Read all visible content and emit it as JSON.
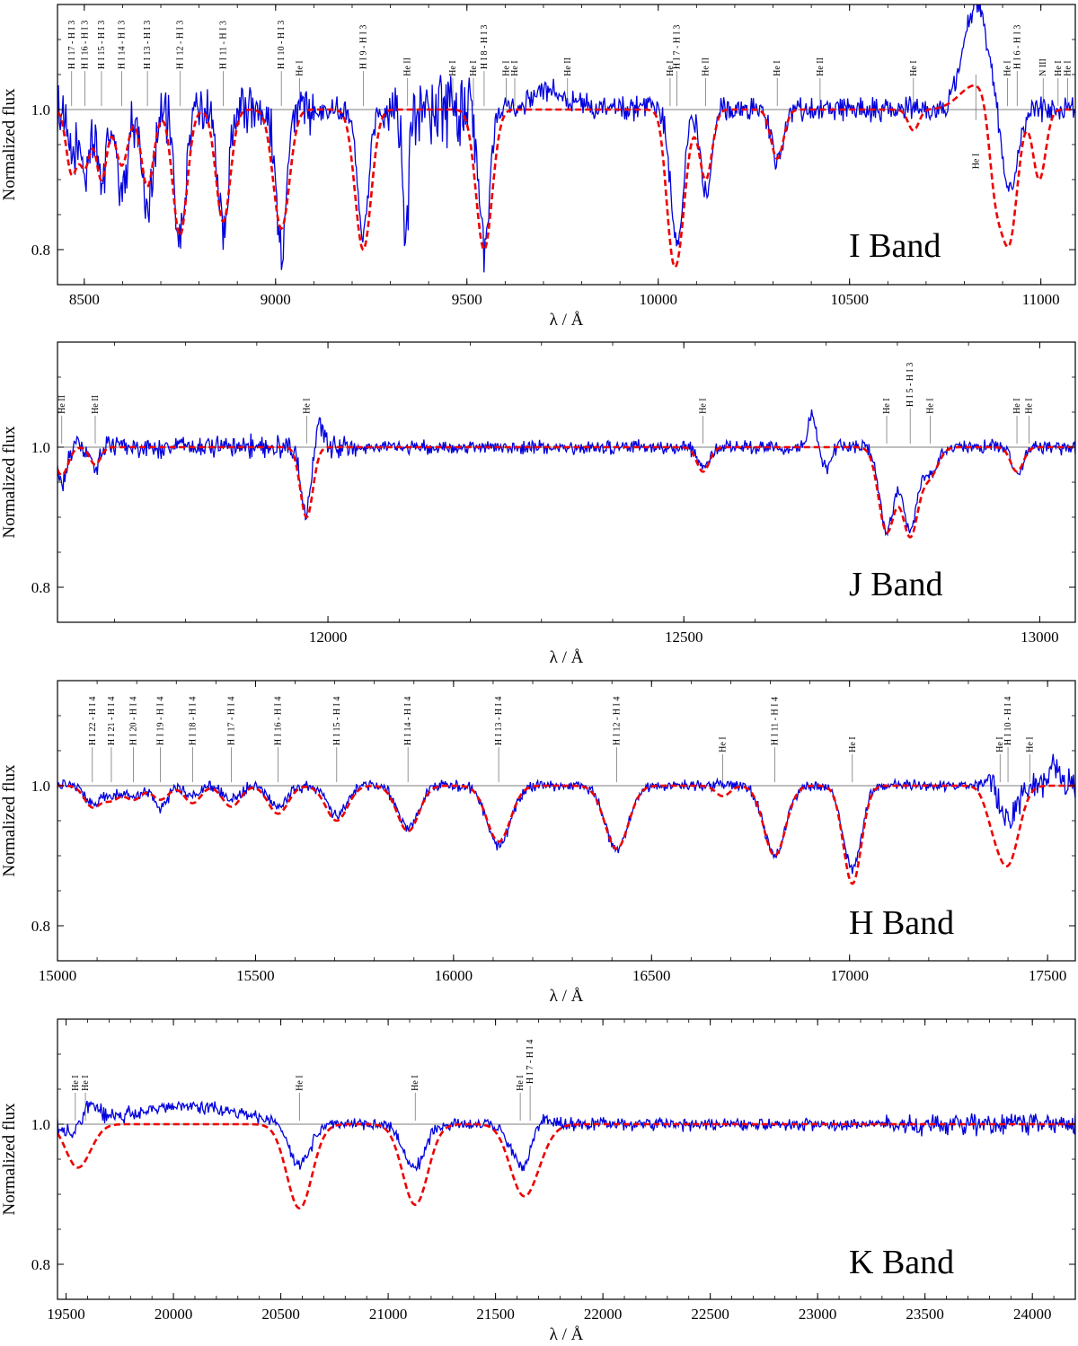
{
  "figure": {
    "colors": {
      "observed": "#0000dd",
      "model": "#ee0000",
      "frame": "#000000",
      "marker": "#666666"
    }
  },
  "chart_data": [
    {
      "type": "line",
      "title": "I Band",
      "xlabel": "λ / Å",
      "ylabel": "Normalized flux",
      "xlim": [
        8430,
        11090
      ],
      "ylim": [
        0.75,
        1.15
      ],
      "xticks": [
        8500,
        9000,
        9500,
        10000,
        10500,
        11000
      ],
      "yticks": [
        0.8,
        1.0
      ],
      "ytick_labels": [
        "0.8",
        "1.0"
      ],
      "noise": 0.022,
      "series": [
        {
          "name": "observed",
          "style": "solid"
        },
        {
          "name": "model",
          "style": "dashed"
        }
      ],
      "features": [
        {
          "x": 8467,
          "depth": -0.07,
          "width": 5
        },
        {
          "x": 8502,
          "depth": -0.09,
          "width": 5
        },
        {
          "x": 8545,
          "depth": -0.1,
          "width": 5
        },
        {
          "x": 8598,
          "depth": -0.12,
          "width": 6
        },
        {
          "x": 8665,
          "depth": -0.14,
          "width": 6
        },
        {
          "x": 8750,
          "depth": -0.19,
          "width": 6
        },
        {
          "x": 8863,
          "depth": -0.17,
          "width": 6
        },
        {
          "x": 9015,
          "depth": -0.2,
          "width": 6
        },
        {
          "x": 9229,
          "depth": -0.18,
          "width": 6
        },
        {
          "x": 9340,
          "depth": -0.18,
          "width": 3
        },
        {
          "x": 9545,
          "depth": -0.2,
          "width": 6
        },
        {
          "x": 10049,
          "depth": -0.19,
          "width": 7
        },
        {
          "x": 10124,
          "depth": -0.12,
          "width": 6
        },
        {
          "x": 10311,
          "depth": -0.08,
          "width": 6
        },
        {
          "x": 10830,
          "depth": 0.15,
          "width": 14
        },
        {
          "x": 10917,
          "depth": -0.12,
          "width": 9
        },
        {
          "x": 9720,
          "depth": 0.03,
          "width": 20
        }
      ],
      "model_features": [
        {
          "x": 8467,
          "depth": -0.09,
          "width": 6
        },
        {
          "x": 8502,
          "depth": -0.08,
          "width": 6
        },
        {
          "x": 8545,
          "depth": -0.1,
          "width": 6
        },
        {
          "x": 8598,
          "depth": -0.08,
          "width": 7
        },
        {
          "x": 8665,
          "depth": -0.11,
          "width": 7
        },
        {
          "x": 8750,
          "depth": -0.18,
          "width": 8
        },
        {
          "x": 8863,
          "depth": -0.16,
          "width": 8
        },
        {
          "x": 9015,
          "depth": -0.17,
          "width": 9
        },
        {
          "x": 9229,
          "depth": -0.2,
          "width": 9
        },
        {
          "x": 9545,
          "depth": -0.2,
          "width": 9
        },
        {
          "x": 10030,
          "depth": -0.05,
          "width": 6
        },
        {
          "x": 10049,
          "depth": -0.2,
          "width": 9
        },
        {
          "x": 10124,
          "depth": -0.1,
          "width": 7
        },
        {
          "x": 10311,
          "depth": -0.07,
          "width": 7
        },
        {
          "x": 10667,
          "depth": -0.03,
          "width": 6
        },
        {
          "x": 10830,
          "depth": 0.035,
          "width": 18
        },
        {
          "x": 10880,
          "depth": -0.11,
          "width": 7
        },
        {
          "x": 10917,
          "depth": -0.19,
          "width": 9
        },
        {
          "x": 10996,
          "depth": -0.1,
          "width": 7
        }
      ],
      "noisy_ranges": [
        {
          "from": 8430,
          "to": 9100,
          "amp": 0.045
        },
        {
          "from": 9280,
          "to": 9560,
          "amp": 0.06
        }
      ],
      "line_ids": [
        {
          "x": 8467,
          "label": "H I 17 - H I 3",
          "stack": 0
        },
        {
          "x": 8502,
          "label": "H I 16 - H I 3",
          "stack": 1
        },
        {
          "x": 8545,
          "label": "H I 15 - H I 3",
          "stack": 1
        },
        {
          "x": 8598,
          "label": "H I 14 - H I 3",
          "stack": 1
        },
        {
          "x": 8665,
          "label": "H I 13 - H I 3",
          "stack": 1
        },
        {
          "x": 8750,
          "label": "H I 12 - H I 3",
          "stack": 1
        },
        {
          "x": 8863,
          "label": "H I 11 - H I 3",
          "stack": 1
        },
        {
          "x": 9015,
          "label": "H I 10 - H I 3",
          "stack": 1
        },
        {
          "x": 9063,
          "label": "He I",
          "stack": 2
        },
        {
          "x": 9229,
          "label": "H I 9 - H I 3",
          "stack": 1
        },
        {
          "x": 9345,
          "label": "He II",
          "stack": 2
        },
        {
          "x": 9463,
          "label": "He I",
          "stack": 2
        },
        {
          "x": 9517,
          "label": "He I",
          "stack": 2
        },
        {
          "x": 9545,
          "label": "H I 8 - H I 3",
          "stack": 1
        },
        {
          "x": 9603,
          "label": "He I",
          "stack": 2
        },
        {
          "x": 9625,
          "label": "He I",
          "stack": 2
        },
        {
          "x": 9763,
          "label": "He II",
          "stack": 2
        },
        {
          "x": 10031,
          "label": "He I",
          "stack": 2
        },
        {
          "x": 10049,
          "label": "H I 7 - H I 3",
          "stack": 1
        },
        {
          "x": 10124,
          "label": "He II",
          "stack": 2
        },
        {
          "x": 10311,
          "label": "He I",
          "stack": 2
        },
        {
          "x": 10423,
          "label": "He II",
          "stack": 2
        },
        {
          "x": 10667,
          "label": "He I",
          "stack": 2
        },
        {
          "x": 10830,
          "label": "He I",
          "stack": 3
        },
        {
          "x": 10913,
          "label": "He I",
          "stack": 2
        },
        {
          "x": 10938,
          "label": "H I 6 - H I 3",
          "stack": 1
        },
        {
          "x": 11006,
          "label": "N III",
          "stack": 2
        },
        {
          "x": 11045,
          "label": "He I",
          "stack": 2
        },
        {
          "x": 11070,
          "label": "He I",
          "stack": 2
        }
      ]
    },
    {
      "type": "line",
      "title": "J Band",
      "xlabel": "λ / Å",
      "ylabel": "Normalized flux",
      "xlim": [
        11620,
        13050
      ],
      "ylim": [
        0.75,
        1.15
      ],
      "xticks": [
        12000,
        12500,
        13000
      ],
      "yticks": [
        0.8,
        1.0
      ],
      "ytick_labels": [
        "0.8",
        "1.0"
      ],
      "noise": 0.012,
      "series": [
        {
          "name": "observed",
          "style": "solid"
        },
        {
          "name": "model",
          "style": "dashed"
        }
      ],
      "features": [
        {
          "x": 11626,
          "depth": -0.05,
          "width": 6
        },
        {
          "x": 11673,
          "depth": -0.03,
          "width": 5
        },
        {
          "x": 11970,
          "depth": -0.1,
          "width": 6
        },
        {
          "x": 11985,
          "depth": 0.04,
          "width": 6
        },
        {
          "x": 12527,
          "depth": -0.03,
          "width": 6
        },
        {
          "x": 12680,
          "depth": 0.05,
          "width": 4
        },
        {
          "x": 12700,
          "depth": -0.03,
          "width": 5
        },
        {
          "x": 12785,
          "depth": -0.12,
          "width": 8
        },
        {
          "x": 12818,
          "depth": -0.12,
          "width": 8
        },
        {
          "x": 12846,
          "depth": -0.04,
          "width": 7
        },
        {
          "x": 12968,
          "depth": -0.04,
          "width": 6
        }
      ],
      "model_features": [
        {
          "x": 11626,
          "depth": -0.04,
          "width": 7
        },
        {
          "x": 11673,
          "depth": -0.025,
          "width": 6
        },
        {
          "x": 11970,
          "depth": -0.1,
          "width": 7
        },
        {
          "x": 12527,
          "depth": -0.035,
          "width": 7
        },
        {
          "x": 12785,
          "depth": -0.12,
          "width": 9
        },
        {
          "x": 12818,
          "depth": -0.125,
          "width": 9
        },
        {
          "x": 12846,
          "depth": -0.04,
          "width": 9
        },
        {
          "x": 12968,
          "depth": -0.035,
          "width": 7
        }
      ],
      "noisy_ranges": [
        {
          "from": 11620,
          "to": 12040,
          "amp": 0.02
        }
      ],
      "line_ids": [
        {
          "x": 11626,
          "label": "He II",
          "stack": 2
        },
        {
          "x": 11673,
          "label": "He II",
          "stack": 2
        },
        {
          "x": 11970,
          "label": "He I",
          "stack": 2
        },
        {
          "x": 12527,
          "label": "He I",
          "stack": 2
        },
        {
          "x": 12785,
          "label": "He I",
          "stack": 2
        },
        {
          "x": 12818,
          "label": "H I 5 - H I 3",
          "stack": 0
        },
        {
          "x": 12846,
          "label": "He I",
          "stack": 2
        },
        {
          "x": 12968,
          "label": "He I",
          "stack": 2
        },
        {
          "x": 12985,
          "label": "He I",
          "stack": 2
        }
      ]
    },
    {
      "type": "line",
      "title": "H Band",
      "xlabel": "λ / Å",
      "ylabel": "Normalized flux",
      "xlim": [
        15000,
        17570
      ],
      "ylim": [
        0.75,
        1.15
      ],
      "xticks": [
        15000,
        15500,
        16000,
        16500,
        17000,
        17500
      ],
      "yticks": [
        0.8,
        1.0
      ],
      "ytick_labels": [
        "0.8",
        "1.0"
      ],
      "noise": 0.01,
      "series": [
        {
          "name": "observed",
          "style": "solid"
        },
        {
          "name": "model",
          "style": "dashed"
        }
      ],
      "features": [
        {
          "x": 15088,
          "depth": -0.025,
          "width": 8
        },
        {
          "x": 15136,
          "depth": -0.015,
          "width": 8
        },
        {
          "x": 15192,
          "depth": -0.015,
          "width": 8
        },
        {
          "x": 15260,
          "depth": -0.03,
          "width": 8
        },
        {
          "x": 15341,
          "depth": -0.015,
          "width": 8
        },
        {
          "x": 15439,
          "depth": -0.02,
          "width": 9
        },
        {
          "x": 15557,
          "depth": -0.03,
          "width": 10
        },
        {
          "x": 15705,
          "depth": -0.04,
          "width": 11
        },
        {
          "x": 15885,
          "depth": -0.06,
          "width": 12
        },
        {
          "x": 16114,
          "depth": -0.085,
          "width": 13
        },
        {
          "x": 16412,
          "depth": -0.09,
          "width": 13
        },
        {
          "x": 16811,
          "depth": -0.1,
          "width": 12
        },
        {
          "x": 17007,
          "depth": -0.12,
          "width": 10
        },
        {
          "x": 17360,
          "depth": 0.02,
          "width": 5
        },
        {
          "x": 17400,
          "depth": -0.05,
          "width": 10
        },
        {
          "x": 17520,
          "depth": 0.03,
          "width": 5
        }
      ],
      "model_features": [
        {
          "x": 15088,
          "depth": -0.03,
          "width": 9
        },
        {
          "x": 15136,
          "depth": -0.02,
          "width": 9
        },
        {
          "x": 15192,
          "depth": -0.02,
          "width": 9
        },
        {
          "x": 15260,
          "depth": -0.02,
          "width": 9
        },
        {
          "x": 15341,
          "depth": -0.025,
          "width": 9
        },
        {
          "x": 15439,
          "depth": -0.03,
          "width": 10
        },
        {
          "x": 15557,
          "depth": -0.04,
          "width": 11
        },
        {
          "x": 15705,
          "depth": -0.05,
          "width": 12
        },
        {
          "x": 15885,
          "depth": -0.065,
          "width": 12
        },
        {
          "x": 16114,
          "depth": -0.08,
          "width": 13
        },
        {
          "x": 16412,
          "depth": -0.09,
          "width": 13
        },
        {
          "x": 16680,
          "depth": -0.015,
          "width": 8
        },
        {
          "x": 16811,
          "depth": -0.1,
          "width": 12
        },
        {
          "x": 17007,
          "depth": -0.14,
          "width": 10
        },
        {
          "x": 17360,
          "depth": -0.03,
          "width": 9
        },
        {
          "x": 17400,
          "depth": -0.11,
          "width": 12
        }
      ],
      "noisy_ranges": [
        {
          "from": 17350,
          "to": 17570,
          "amp": 0.025
        }
      ],
      "line_ids": [
        {
          "x": 15088,
          "label": "H I 22 - H I 4",
          "stack": 0
        },
        {
          "x": 15136,
          "label": "H I 21 - H I 4",
          "stack": 0
        },
        {
          "x": 15192,
          "label": "H I 20 - H I 4",
          "stack": 0
        },
        {
          "x": 15260,
          "label": "H I 19 - H I 4",
          "stack": 0
        },
        {
          "x": 15341,
          "label": "H I 18 - H I 4",
          "stack": 0
        },
        {
          "x": 15439,
          "label": "H I 17 - H I 4",
          "stack": 0
        },
        {
          "x": 15557,
          "label": "H I 16 - H I 4",
          "stack": 0
        },
        {
          "x": 15705,
          "label": "H I 15 - H I 4",
          "stack": 0
        },
        {
          "x": 15885,
          "label": "H I 14 - H I 4",
          "stack": 0
        },
        {
          "x": 16114,
          "label": "H I 13 - H I 4",
          "stack": 0
        },
        {
          "x": 16412,
          "label": "H I 12 - H I 4",
          "stack": 0
        },
        {
          "x": 16680,
          "label": "He I",
          "stack": 2
        },
        {
          "x": 16811,
          "label": "H I 11 - H I 4",
          "stack": 0
        },
        {
          "x": 17007,
          "label": "He I",
          "stack": 2
        },
        {
          "x": 17380,
          "label": "He I",
          "stack": 2
        },
        {
          "x": 17400,
          "label": "H I 10 - H I 4",
          "stack": 0
        },
        {
          "x": 17455,
          "label": "He I",
          "stack": 2
        }
      ]
    },
    {
      "type": "line",
      "title": "K Band",
      "xlabel": "λ / Å",
      "ylabel": "Normalized flux",
      "xlim": [
        19460,
        24200
      ],
      "ylim": [
        0.75,
        1.15
      ],
      "xticks": [
        19500,
        20000,
        20500,
        21000,
        21500,
        22000,
        22500,
        23000,
        23500,
        24000
      ],
      "yticks": [
        0.8,
        1.0
      ],
      "ytick_labels": [
        "0.8",
        "1.0"
      ],
      "noise": 0.011,
      "series": [
        {
          "name": "observed",
          "style": "solid"
        },
        {
          "name": "model",
          "style": "dashed"
        }
      ],
      "features": [
        {
          "x": 19543,
          "depth": -0.03,
          "width": 10
        },
        {
          "x": 19590,
          "depth": 0.03,
          "width": 12
        },
        {
          "x": 20060,
          "depth": 0.025,
          "width": 60
        },
        {
          "x": 20587,
          "depth": -0.06,
          "width": 12
        },
        {
          "x": 21126,
          "depth": -0.08,
          "width": 12
        },
        {
          "x": 21150,
          "depth": 0.02,
          "width": 12
        },
        {
          "x": 21615,
          "depth": -0.04,
          "width": 12
        },
        {
          "x": 21661,
          "depth": -0.03,
          "width": 14
        },
        {
          "x": 21700,
          "depth": 0.03,
          "width": 10
        }
      ],
      "model_features": [
        {
          "x": 19543,
          "depth": -0.05,
          "width": 12
        },
        {
          "x": 19600,
          "depth": -0.02,
          "width": 12
        },
        {
          "x": 20587,
          "depth": -0.12,
          "width": 14
        },
        {
          "x": 21126,
          "depth": -0.115,
          "width": 14
        },
        {
          "x": 21615,
          "depth": -0.055,
          "width": 14
        },
        {
          "x": 21661,
          "depth": -0.055,
          "width": 16
        }
      ],
      "noisy_ranges": [
        {
          "from": 23300,
          "to": 24200,
          "amp": 0.018
        },
        {
          "from": 19460,
          "to": 19800,
          "amp": 0.015
        }
      ],
      "line_ids": [
        {
          "x": 19543,
          "label": "He I",
          "stack": 2
        },
        {
          "x": 19590,
          "label": "He I",
          "stack": 2
        },
        {
          "x": 20587,
          "label": "He I",
          "stack": 2
        },
        {
          "x": 21126,
          "label": "He I",
          "stack": 2
        },
        {
          "x": 21615,
          "label": "He I",
          "stack": 2
        },
        {
          "x": 21661,
          "label": "H I 7 - H I 4",
          "stack": 0
        }
      ]
    }
  ]
}
